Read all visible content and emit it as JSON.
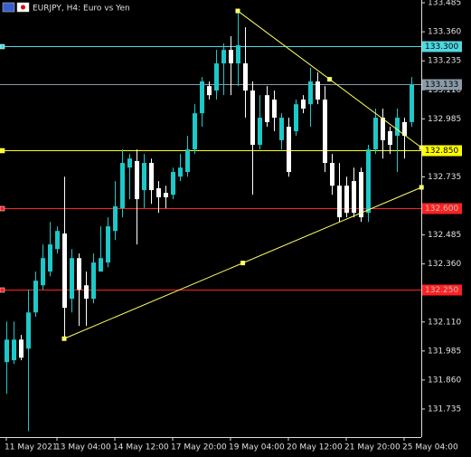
{
  "chart_data": {
    "type": "candlestick",
    "title": "EURJPY, H4:  Euro vs Yen",
    "categories": [
      "11 May 2021",
      null,
      null,
      null,
      null,
      null,
      null,
      "13 May 04:00",
      null,
      null,
      null,
      null,
      null,
      null,
      null,
      "14 May 12:00",
      null,
      null,
      null,
      null,
      null,
      null,
      null,
      "17 May 20:00",
      null,
      null,
      null,
      null,
      null,
      null,
      null,
      "19 May 04:00",
      null,
      null,
      null,
      null,
      null,
      null,
      null,
      "20 May 12:00",
      null,
      null,
      null,
      null,
      null,
      null,
      null,
      "21 May 20:00",
      null,
      null,
      null,
      null,
      null,
      null,
      null,
      "25 May 04:00",
      null
    ],
    "open": [
      131.937,
      131.945,
      132.034,
      131.995,
      132.151,
      132.268,
      132.327,
      132.424,
      132.491,
      132.21,
      132.385,
      132.268,
      132.21,
      132.327,
      132.366,
      132.502,
      132.6,
      132.775,
      132.803,
      132.678,
      132.795,
      132.686,
      132.666,
      132.658,
      132.736,
      132.756,
      132.853,
      133.009,
      133.126,
      133.107,
      133.224,
      133.282,
      133.224,
      133.224,
      133.107,
      132.873,
      133.087,
      133.068,
      132.893,
      132.951,
      132.932,
      133.068,
      133.048,
      133.146,
      133.068,
      132.795,
      132.697,
      132.697,
      132.717,
      132.756,
      132.58,
      132.853,
      132.99,
      132.932,
      132.912,
      132.971,
      132.971
    ],
    "high": [
      132.112,
      132.112,
      132.054,
      132.249,
      132.327,
      132.444,
      132.541,
      132.522,
      132.736,
      132.424,
      132.405,
      132.327,
      132.405,
      132.522,
      132.561,
      132.717,
      132.853,
      132.834,
      132.853,
      132.834,
      132.814,
      132.717,
      132.697,
      132.775,
      132.834,
      132.912,
      133.048,
      133.165,
      133.146,
      133.282,
      133.31,
      133.341,
      133.45,
      133.38,
      133.146,
      133.087,
      133.126,
      133.107,
      133.009,
      132.99,
      133.068,
      133.087,
      133.205,
      133.185,
      133.126,
      132.834,
      132.795,
      132.736,
      132.775,
      132.775,
      132.873,
      133.029,
      133.029,
      132.951,
      133.029,
      132.99,
      133.165
    ],
    "low": [
      131.8,
      131.929,
      131.945,
      131.64,
      132.132,
      132.249,
      132.307,
      132.405,
      132.038,
      132.151,
      132.093,
      132.093,
      132.19,
      132.327,
      132.346,
      132.463,
      132.561,
      132.639,
      132.444,
      132.6,
      132.619,
      132.58,
      132.6,
      132.639,
      132.717,
      132.736,
      132.834,
      132.951,
      133.068,
      133.068,
      133.087,
      133.087,
      133.126,
      132.99,
      132.658,
      132.853,
      132.951,
      132.932,
      132.853,
      132.736,
      132.912,
      133.009,
      132.951,
      133.048,
      132.756,
      132.658,
      132.541,
      132.561,
      132.561,
      132.541,
      132.541,
      132.834,
      132.814,
      132.834,
      132.756,
      132.814,
      132.951
    ],
    "close": [
      132.034,
      132.034,
      131.956,
      132.151,
      132.288,
      132.385,
      132.444,
      132.502,
      132.171,
      132.385,
      132.249,
      132.21,
      132.366,
      132.385,
      132.522,
      132.608,
      132.795,
      132.814,
      132.639,
      132.795,
      132.678,
      132.647,
      132.647,
      132.756,
      132.775,
      132.853,
      133.009,
      133.146,
      133.087,
      133.224,
      133.282,
      133.224,
      133.302,
      133.107,
      132.873,
      132.99,
      132.971,
      132.99,
      132.99,
      132.756,
      133.048,
      133.029,
      133.146,
      133.068,
      132.795,
      132.697,
      132.561,
      132.58,
      132.58,
      132.561,
      132.853,
      132.99,
      132.893,
      132.873,
      132.99,
      132.912,
      133.133
    ],
    "up_color": "#1ec8c8",
    "down_color": "#ffffff",
    "ylim": [
      131.614,
      133.497
    ],
    "yticks": [
      133.485,
      {
        "value": 133.36,
        "label": "133.360"
      },
      133.235,
      {
        "value": 133.11,
        "label": "133.110"
      },
      132.985,
      132.735,
      132.485,
      {
        "value": 132.36,
        "label": "132.360"
      },
      {
        "value": 132.11,
        "label": "132.110"
      },
      131.985,
      {
        "value": 131.86,
        "label": "131.860"
      },
      131.735
    ],
    "levels": [
      {
        "value": 133.3,
        "label": "133.300",
        "color": "#4fd8e0",
        "text_color": "#000000"
      },
      {
        "value": 133.133,
        "color": "#8a9aa8",
        "text_color": "#000000"
      },
      {
        "value": 132.85,
        "label": "132.850",
        "color": "#ffff00",
        "text_color": "#000000"
      },
      {
        "value": 132.6,
        "label": "132.600",
        "color": "#ff2020",
        "text_color": "#c0c0c0"
      },
      {
        "value": 132.25,
        "label": "132.250",
        "color": "#ff2020",
        "text_color": "#c0c0c0"
      }
    ],
    "trendlines": [
      {
        "x": [
          32,
          57.4
        ],
        "y": [
          133.45,
          132.861
        ],
        "color": "#ffff66"
      },
      {
        "x": [
          8,
          57.4
        ],
        "y": [
          132.038,
          132.69
        ],
        "color": "#ffff66"
      }
    ]
  }
}
